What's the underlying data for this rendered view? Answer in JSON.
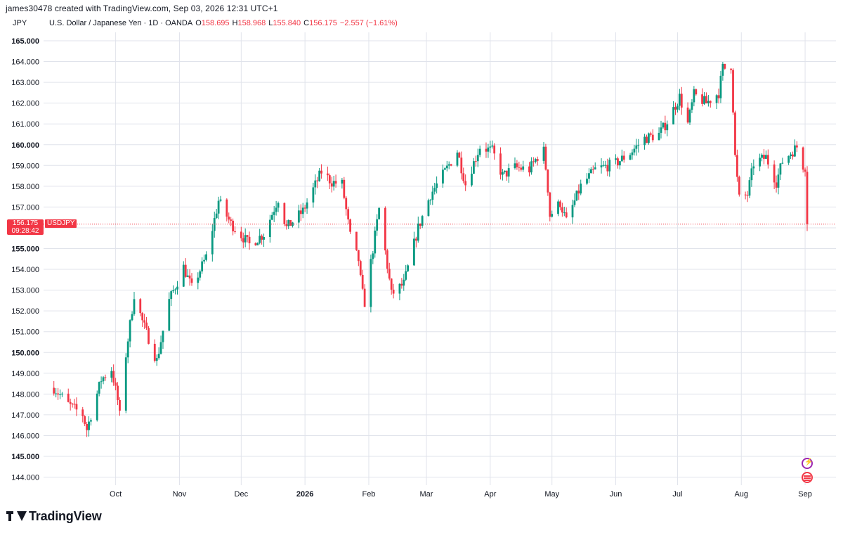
{
  "header": {
    "attribution": "james30478 created with TradingView.com, Sep 03, 2026 12:31 UTC+1",
    "currency": "JPY",
    "symbol_name": "U.S. Dollar / Japanese Yen · 1D · OANDA",
    "open_key": "O",
    "open": "158.695",
    "high_key": "H",
    "high": "158.968",
    "low_key": "L",
    "low": "155.840",
    "close_key": "C",
    "close": "156.175",
    "change": "−2.557 (−1.61%)"
  },
  "price_tag": {
    "price": "156.175",
    "countdown": "09:28:42",
    "ticker": "USDJPY"
  },
  "branding": {
    "name": "TradingView"
  },
  "colors": {
    "up": "#089981",
    "down": "#f23645",
    "grid": "#e0e3eb",
    "text": "#131722"
  },
  "icons": [
    "event-lightning-icon",
    "us-flag-icon"
  ],
  "chart_data": {
    "type": "candlestick",
    "title": "U.S. Dollar / Japanese Yen · 1D · OANDA",
    "ylim": [
      143.7,
      165.6
    ],
    "y_ticks": [
      "165.000",
      "164.000",
      "163.000",
      "162.000",
      "161.000",
      "160.000",
      "159.000",
      "158.000",
      "157.000",
      "156.000",
      "155.000",
      "154.000",
      "153.000",
      "152.000",
      "151.000",
      "150.000",
      "149.000",
      "148.000",
      "147.000",
      "146.000",
      "145.000",
      "144.000"
    ],
    "bold_ticks": [
      "165.000",
      "160.000",
      "155.000",
      "150.000",
      "145.000"
    ],
    "x_ticks": [
      {
        "label": "Oct",
        "date": "2025-10-01"
      },
      {
        "label": "Nov",
        "date": "2025-11-01"
      },
      {
        "label": "Dec",
        "date": "2025-12-01"
      },
      {
        "label": "2026",
        "date": "2026-01-01",
        "bold": true
      },
      {
        "label": "Feb",
        "date": "2026-02-01"
      },
      {
        "label": "Mar",
        "date": "2026-03-01"
      },
      {
        "label": "Apr",
        "date": "2026-04-01"
      },
      {
        "label": "May",
        "date": "2026-05-01"
      },
      {
        "label": "Jun",
        "date": "2026-06-01"
      },
      {
        "label": "Jul",
        "date": "2026-07-01"
      },
      {
        "label": "Aug",
        "date": "2026-08-01"
      },
      {
        "label": "Sep",
        "date": "2026-09-01"
      }
    ],
    "last_price": 156.175,
    "key_points": [
      {
        "date": "2025-09-01",
        "close": 148.3
      },
      {
        "date": "2025-09-08",
        "close": 147.5
      },
      {
        "date": "2025-09-15",
        "close": 147.0
      },
      {
        "date": "2025-09-17",
        "close": 146.3
      },
      {
        "date": "2025-09-24",
        "close": 148.7
      },
      {
        "date": "2025-09-29",
        "close": 149.2
      },
      {
        "date": "2025-10-03",
        "close": 147.2
      },
      {
        "date": "2025-10-06",
        "close": 149.9
      },
      {
        "date": "2025-10-10",
        "close": 152.8
      },
      {
        "date": "2025-10-14",
        "close": 151.5
      },
      {
        "date": "2025-10-21",
        "close": 149.6
      },
      {
        "date": "2025-10-27",
        "close": 152.5
      },
      {
        "date": "2025-11-03",
        "close": 154.1
      },
      {
        "date": "2025-11-07",
        "close": 153.1
      },
      {
        "date": "2025-11-14",
        "close": 154.6
      },
      {
        "date": "2025-11-20",
        "close": 157.3
      },
      {
        "date": "2025-11-26",
        "close": 156.2
      },
      {
        "date": "2025-12-05",
        "close": 155.2
      },
      {
        "date": "2025-12-12",
        "close": 155.7
      },
      {
        "date": "2025-12-19",
        "close": 157.4
      },
      {
        "date": "2025-12-23",
        "close": 156.0
      },
      {
        "date": "2025-12-31",
        "close": 156.8
      },
      {
        "date": "2026-01-09",
        "close": 158.7
      },
      {
        "date": "2026-01-14",
        "close": 158.2
      },
      {
        "date": "2026-01-19",
        "close": 158.1
      },
      {
        "date": "2026-01-23",
        "close": 155.6
      },
      {
        "date": "2026-01-27",
        "close": 154.4
      },
      {
        "date": "2026-01-30",
        "close": 152.4
      },
      {
        "date": "2026-02-06",
        "close": 156.9
      },
      {
        "date": "2026-02-12",
        "close": 152.8
      },
      {
        "date": "2026-02-18",
        "close": 153.3
      },
      {
        "date": "2026-02-25",
        "close": 156.0
      },
      {
        "date": "2026-03-03",
        "close": 157.6
      },
      {
        "date": "2026-03-10",
        "close": 158.7
      },
      {
        "date": "2026-03-16",
        "close": 159.7
      },
      {
        "date": "2026-03-20",
        "close": 158.1
      },
      {
        "date": "2026-03-27",
        "close": 159.9
      },
      {
        "date": "2026-04-02",
        "close": 159.7
      },
      {
        "date": "2026-04-07",
        "close": 158.5
      },
      {
        "date": "2026-04-13",
        "close": 158.9
      },
      {
        "date": "2026-04-20",
        "close": 158.8
      },
      {
        "date": "2026-04-27",
        "close": 159.9
      },
      {
        "date": "2026-04-30",
        "close": 156.6
      },
      {
        "date": "2026-05-05",
        "close": 157.2
      },
      {
        "date": "2026-05-08",
        "close": 156.3
      },
      {
        "date": "2026-05-15",
        "close": 158.0
      },
      {
        "date": "2026-05-22",
        "close": 158.8
      },
      {
        "date": "2026-06-01",
        "close": 159.1
      },
      {
        "date": "2026-06-08",
        "close": 159.6
      },
      {
        "date": "2026-06-15",
        "close": 160.3
      },
      {
        "date": "2026-06-22",
        "close": 160.5
      },
      {
        "date": "2026-06-26",
        "close": 161.1
      },
      {
        "date": "2026-07-02",
        "close": 162.3
      },
      {
        "date": "2026-07-06",
        "close": 161.0
      },
      {
        "date": "2026-07-09",
        "close": 162.4
      },
      {
        "date": "2026-07-15",
        "close": 162.0
      },
      {
        "date": "2026-07-21",
        "close": 162.5
      },
      {
        "date": "2026-07-23",
        "close": 163.7
      },
      {
        "date": "2026-07-27",
        "close": 163.6
      },
      {
        "date": "2026-07-29",
        "close": 159.5
      },
      {
        "date": "2026-07-31",
        "close": 157.4
      },
      {
        "date": "2026-08-04",
        "close": 157.6
      },
      {
        "date": "2026-08-07",
        "close": 159.1
      },
      {
        "date": "2026-08-13",
        "close": 159.4
      },
      {
        "date": "2026-08-18",
        "close": 158.2
      },
      {
        "date": "2026-08-21",
        "close": 159.2
      },
      {
        "date": "2026-08-28",
        "close": 159.9
      },
      {
        "date": "2026-09-01",
        "close": 158.7
      },
      {
        "date": "2026-09-02",
        "close": 156.175
      }
    ]
  }
}
